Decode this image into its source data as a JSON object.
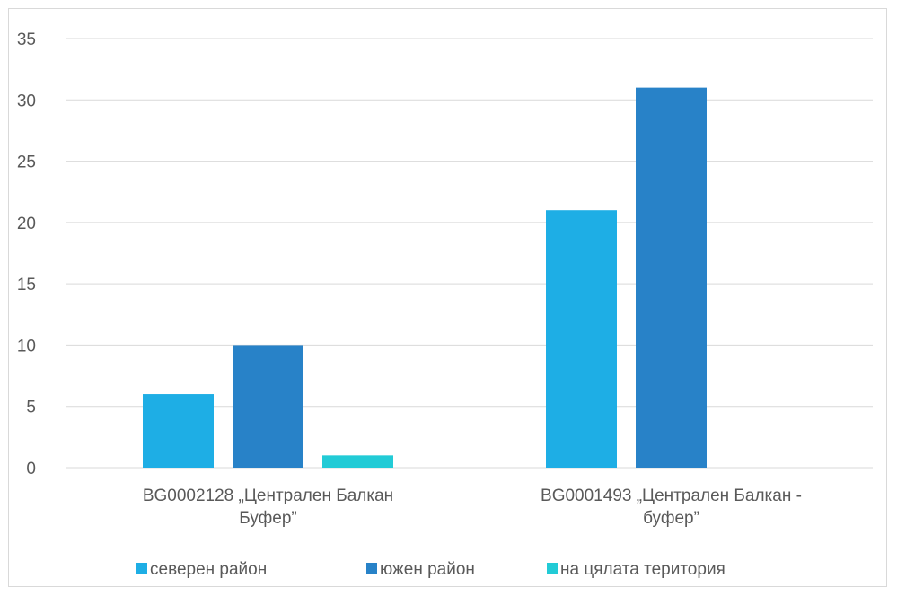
{
  "chart_data": {
    "type": "bar",
    "title": "",
    "xlabel": "",
    "ylabel": "",
    "categories": [
      [
        "BG0002128 „Централен Балкан",
        "Буфер”"
      ],
      [
        "BG0001493 „Централен Балкан -",
        "буфер”"
      ]
    ],
    "series": [
      {
        "name": "северен район",
        "color": "#1eaee5",
        "values": [
          6,
          21
        ]
      },
      {
        "name": "южен район",
        "color": "#2882c8",
        "values": [
          10,
          31
        ]
      },
      {
        "name": "на цялата територия",
        "color": "#22cbd6",
        "values": [
          1,
          0
        ]
      }
    ],
    "ylim": [
      0,
      35
    ],
    "yticks": [
      0,
      5,
      10,
      15,
      20,
      25,
      30,
      35
    ],
    "grid": true,
    "legend_position": "bottom"
  }
}
